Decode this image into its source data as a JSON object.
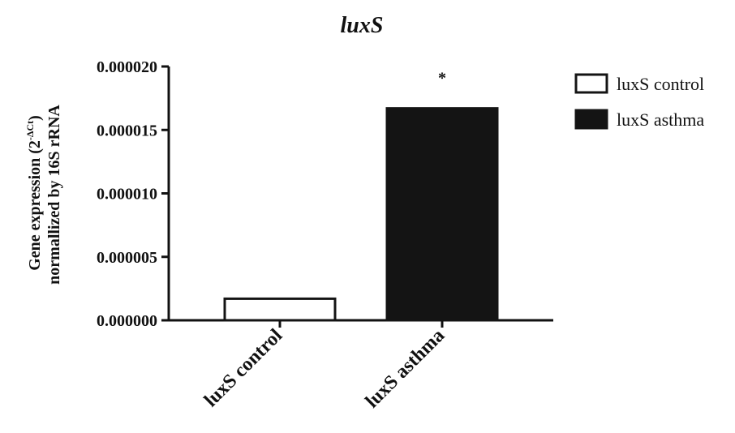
{
  "chart_data": {
    "type": "bar",
    "title": "luxS",
    "ylabel": {
      "line1_prefix": "Gene expression (2",
      "line1_sup": "-ΔCt",
      "line1_suffix": ")",
      "line2": "normallized by 16S rRNA"
    },
    "categories": [
      "luxS control",
      "luxS asthma"
    ],
    "values": [
      1.7e-06,
      1.67e-05
    ],
    "ylim": [
      0,
      2e-05
    ],
    "yticks": [
      0,
      5e-06,
      1e-05,
      1.5e-05,
      2e-05
    ],
    "ytick_labels": [
      "0.000000",
      "0.000005",
      "0.000010",
      "0.000015",
      "0.000020"
    ],
    "bar_fill": [
      "#ffffff",
      "#141414"
    ],
    "bar_stroke": "#141414",
    "significance": [
      {
        "category": "luxS asthma",
        "label": "*"
      }
    ],
    "legend": [
      {
        "label": "luxS control",
        "fill": "#ffffff"
      },
      {
        "label": "luxS asthma",
        "fill": "#141414"
      }
    ],
    "legend_position": "right",
    "grid": false
  }
}
